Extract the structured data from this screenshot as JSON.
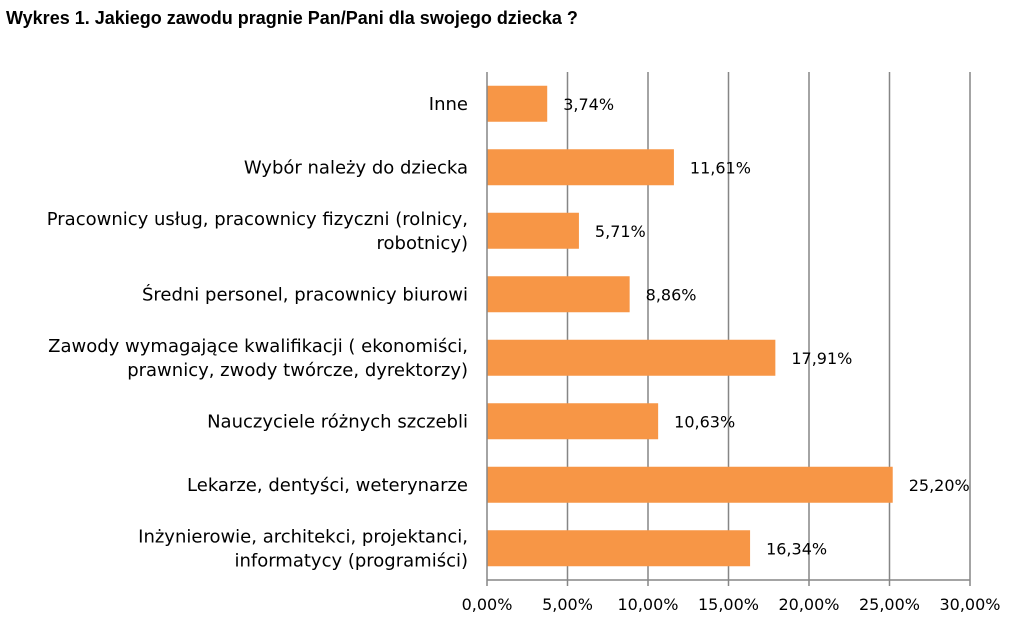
{
  "chart_data": {
    "type": "bar",
    "orientation": "horizontal",
    "title": "Wykres 1. Jakiego zawodu pragnie Pan/Pani dla swojego dziecka ?",
    "categories": [
      [
        "Inne"
      ],
      [
        "Wybór należy do dziecka"
      ],
      [
        "Pracownicy usług, pracownicy fizyczni (rolnicy,",
        "robotnicy)"
      ],
      [
        "Średni personel, pracownicy biurowi"
      ],
      [
        "Zawody wymagające kwalifikacji ( ekonomiści,",
        "prawnicy, zwody twórcze, dyrektorzy)"
      ],
      [
        "Nauczyciele różnych szczebli"
      ],
      [
        "Lekarze,  dentyści, weterynarze"
      ],
      [
        "Inżynierowie,  architekci, projektanci,",
        "informatycy (programiści)"
      ]
    ],
    "values": [
      3.74,
      11.61,
      5.71,
      8.86,
      17.91,
      10.63,
      25.2,
      16.34
    ],
    "value_labels": [
      "3,74%",
      "11,61%",
      "5,71%",
      "8,86%",
      "17,91%",
      "10,63%",
      "25,20%",
      "16,34%"
    ],
    "xlim": [
      0,
      30
    ],
    "xticks": [
      0,
      5,
      10,
      15,
      20,
      25,
      30
    ],
    "xtick_labels": [
      "0,00%",
      "5,00%",
      "10,00%",
      "15,00%",
      "20,00%",
      "25,00%",
      "30,00%"
    ],
    "grid": "vertical",
    "legend": "none",
    "colors": {
      "bar": "#F79646",
      "grid": "#868686",
      "axis": "#868686"
    }
  }
}
